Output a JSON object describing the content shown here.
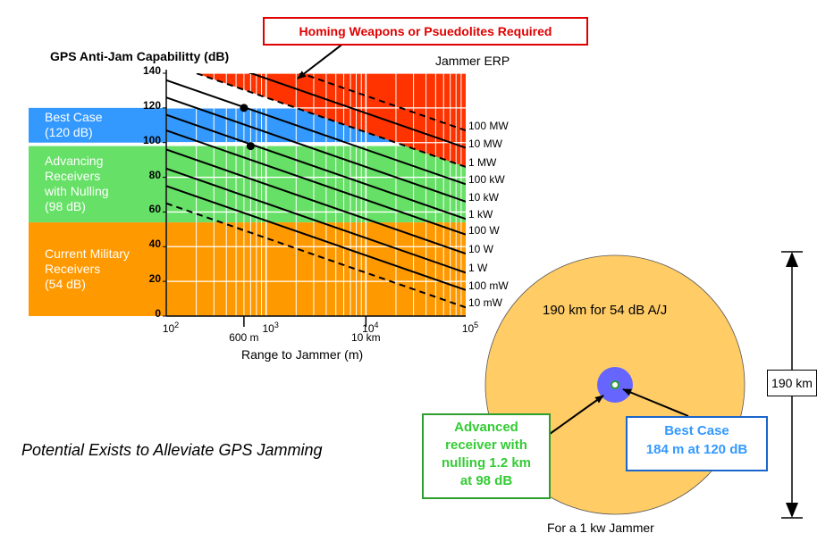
{
  "chart_data": {
    "type": "line",
    "title": "GPS Anti-Jam Capabilitty (dB)",
    "xlabel": "Range to Jammer (m)",
    "x_scale": "log",
    "xlim": [
      100,
      100000
    ],
    "ylim": [
      0,
      140
    ],
    "grid": true,
    "x_ticks": [
      {
        "value": 100,
        "base": "10",
        "exp": "2"
      },
      {
        "value": 1000,
        "base": "10",
        "exp": "3"
      },
      {
        "value": 10000,
        "base": "10",
        "exp": "4"
      },
      {
        "value": 100000,
        "base": "10",
        "exp": "5"
      }
    ],
    "x_annotations": [
      {
        "value": 600,
        "label": "600 m"
      },
      {
        "value": 10000,
        "label": "10 km"
      }
    ],
    "y_ticks": [
      0,
      20,
      40,
      60,
      80,
      100,
      120,
      140
    ],
    "legend_title": "Jammer ERP",
    "series": [
      {
        "name": "100 MW",
        "dashed": true,
        "y_at_1e5": 107
      },
      {
        "name": "10 MW",
        "dashed": false,
        "y_at_1e5": 97
      },
      {
        "name": "1 MW",
        "dashed": true,
        "y_at_1e5": 86
      },
      {
        "name": "100 kW",
        "dashed": false,
        "y_at_1e5": 76
      },
      {
        "name": "10 kW",
        "dashed": false,
        "y_at_1e5": 66
      },
      {
        "name": "1 kW",
        "dashed": false,
        "y_at_1e5": 56
      },
      {
        "name": "100 W",
        "dashed": false,
        "y_at_1e5": 47
      },
      {
        "name": "10 W",
        "dashed": false,
        "y_at_1e5": 36
      },
      {
        "name": "1 W",
        "dashed": false,
        "y_at_1e5": 25
      },
      {
        "name": "100 mW",
        "dashed": false,
        "y_at_1e5": 15
      },
      {
        "name": "10 mW",
        "dashed": true,
        "y_at_1e5": 5
      }
    ],
    "slope_db_per_decade": -20,
    "bands": [
      {
        "label": "Best Case\n(120 dB)",
        "from": 100,
        "to": 120,
        "color": "#3399ff"
      },
      {
        "label": "Advancing\nReceivers\nwith Nulling\n(98 dB)",
        "from": 54,
        "to": 98,
        "color": "#66e066"
      },
      {
        "label": "Current Military\nReceivers\n(54 dB)",
        "from": 0,
        "to": 54,
        "color": "#ff9900"
      }
    ],
    "top_region_color": "#ff3300",
    "points": [
      {
        "x": 600,
        "y": 120
      },
      {
        "x": 700,
        "y": 98
      }
    ]
  },
  "callouts": {
    "homing": "Homing Weapons or Psuedolites Required",
    "tagline": "Potential Exists to Alleviate GPS Jamming",
    "advanced": "Advanced\nreceiver with\nnulling 1.2 km\nat 98 dB",
    "best_title": "Best Case",
    "best_value": "184 m at 120 dB"
  },
  "circle": {
    "outer_label": "190 km for 54 dB A/J",
    "caption": "For a 1 kw Jammer",
    "dimension": "190 km",
    "outer_color": "#ffcc66",
    "middle_color": "#6666ff",
    "inner_color": "#ffffff"
  },
  "colors": {
    "homing_red": "#ff3300",
    "advanced_green": "#33cc33",
    "best_blue": "#3399ff"
  }
}
